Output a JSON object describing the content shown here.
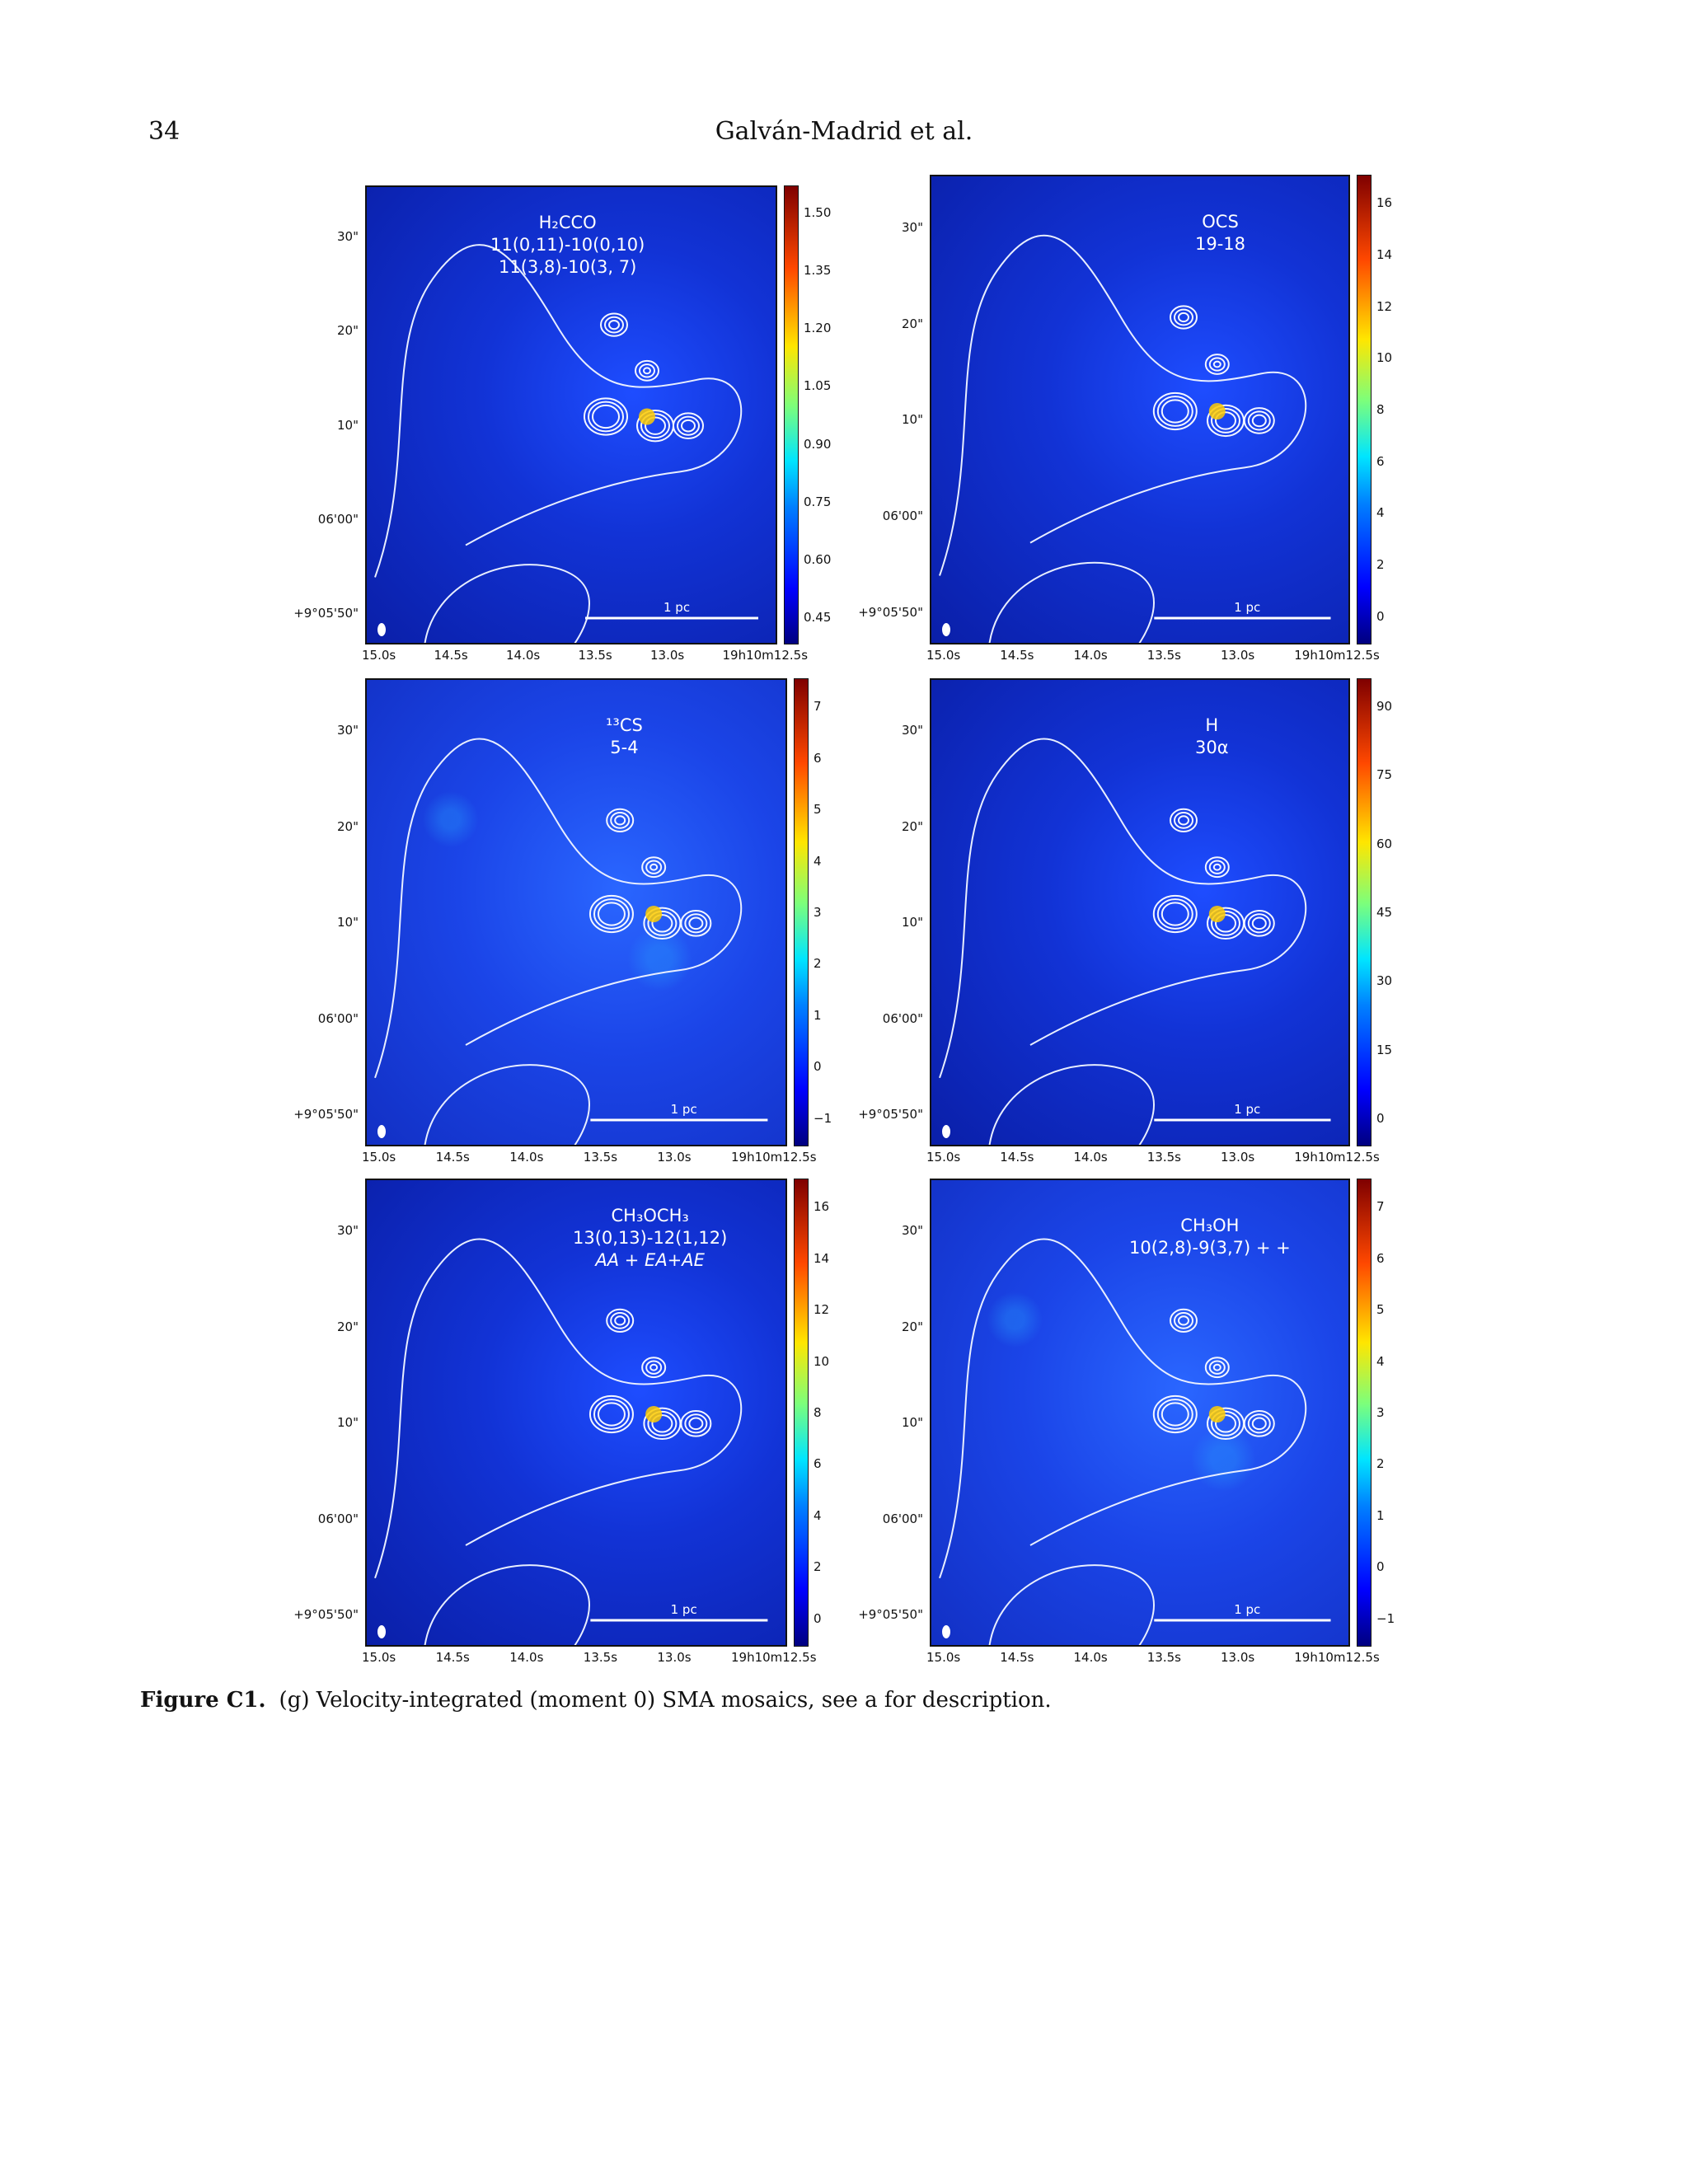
{
  "header": {
    "page_number": "34",
    "running_head": "Galván-Madrid et al."
  },
  "figure": {
    "y_ticks": [
      "30\"",
      "20\"",
      "10\"",
      "06'00\"",
      "+9°05'50\""
    ],
    "x_ticks": [
      "15.0s",
      "14.5s",
      "14.0s",
      "13.5s",
      "13.0s",
      "19h10m12.5s"
    ],
    "scalebar_label": "1 pc",
    "panels": [
      {
        "id": "h2cco",
        "label_lines": [
          "H₂CCO",
          "11(0,11)-10(0,10)",
          "11(3,8)-10(3, 7)"
        ],
        "colorbar_ticks": [
          "1.50",
          "1.35",
          "1.20",
          "1.05",
          "0.90",
          "0.75",
          "0.60",
          "0.45"
        ]
      },
      {
        "id": "ocs",
        "label_lines": [
          "OCS",
          "19-18"
        ],
        "colorbar_ticks": [
          "16",
          "14",
          "12",
          "10",
          "8",
          "6",
          "4",
          "2",
          "0"
        ]
      },
      {
        "id": "13cs",
        "label_lines": [
          "¹³CS",
          "5-4"
        ],
        "colorbar_ticks": [
          "7",
          "6",
          "5",
          "4",
          "3",
          "2",
          "1",
          "0",
          "−1"
        ]
      },
      {
        "id": "h30a",
        "label_lines": [
          "H",
          "30α"
        ],
        "colorbar_ticks": [
          "90",
          "75",
          "60",
          "45",
          "30",
          "15",
          "0"
        ]
      },
      {
        "id": "ch3och3",
        "label_lines": [
          "CH₃OCH₃",
          "13(0,13)-12(1,12)",
          "AA + EA+AE"
        ],
        "colorbar_ticks": [
          "16",
          "14",
          "12",
          "10",
          "8",
          "6",
          "4",
          "2",
          "0"
        ]
      },
      {
        "id": "ch3oh",
        "label_lines": [
          "CH₃OH",
          "10(2,8)-9(3,7) + +"
        ],
        "colorbar_ticks": [
          "7",
          "6",
          "5",
          "4",
          "3",
          "2",
          "1",
          "0",
          "−1"
        ]
      }
    ]
  },
  "caption": {
    "label": "Figure C1.",
    "text": "(g) Velocity-integrated (moment 0) SMA mosaics, see a for description."
  }
}
